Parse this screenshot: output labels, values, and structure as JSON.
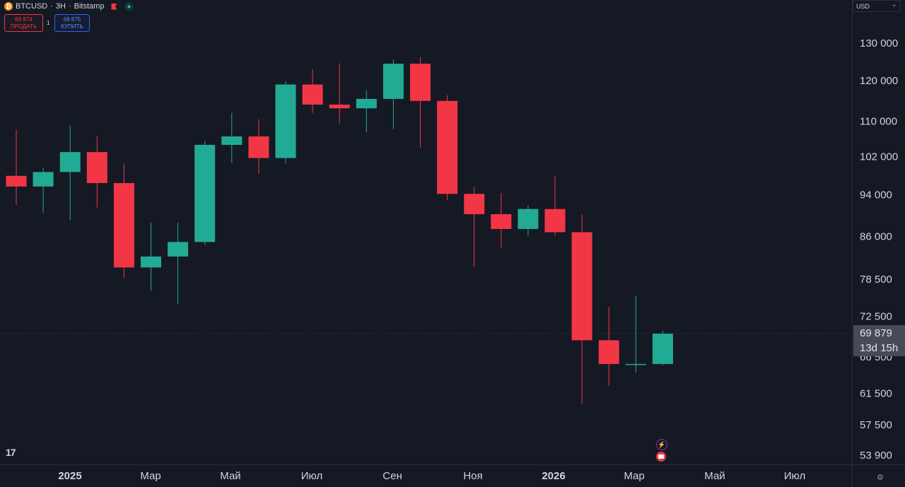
{
  "header": {
    "symbol": "BTCUSD",
    "sep1": "·",
    "interval": "3Н",
    "sep2": "·",
    "exchange": "Bitstamp"
  },
  "trade": {
    "sell_price": "69 874",
    "sell_label": "ПРОДАТЬ",
    "quantity": "1",
    "buy_price": "69 875",
    "buy_label": "КУПИТЬ"
  },
  "currency": "USD",
  "last": {
    "price": "69 879",
    "countdown": "13d 15h"
  },
  "icons": {
    "logo": "tradingview-logo-icon",
    "settings": "settings-icon",
    "coin": "bitcoin-icon",
    "flag": "flag-icon",
    "live": "live-dot-icon",
    "event_bolt": "lightning-event-icon",
    "event_flag": "us-flag-event-icon"
  },
  "colors": {
    "up": "#22ab94",
    "down": "#f23645",
    "background": "#151924",
    "grid": "#2a2e39"
  },
  "chart_data": {
    "type": "candlestick",
    "scale": "log",
    "y_ticks": [
      130000,
      120000,
      110000,
      102000,
      94000,
      86000,
      78500,
      72500,
      66500,
      61500,
      57500,
      53900
    ],
    "y_tick_labels": [
      "130 000",
      "120 000",
      "110 000",
      "102 000",
      "94 000",
      "86 000",
      "78 500",
      "72 500",
      "66 500",
      "61 500",
      "57 500",
      "53 900"
    ],
    "x_labels": [
      "2025",
      "Мар",
      "Май",
      "Июл",
      "Сен",
      "Ноя",
      "2026",
      "Мар",
      "Май",
      "Июл"
    ],
    "x_label_bold": [
      true,
      false,
      false,
      false,
      false,
      false,
      true,
      false,
      false,
      false
    ],
    "candles": [
      {
        "o": 97900,
        "h": 108000,
        "l": 92000,
        "c": 95700
      },
      {
        "o": 95700,
        "h": 99600,
        "l": 90500,
        "c": 98700
      },
      {
        "o": 98700,
        "h": 109000,
        "l": 89000,
        "c": 103000
      },
      {
        "o": 103000,
        "h": 106500,
        "l": 91500,
        "c": 96400
      },
      {
        "o": 96400,
        "h": 100500,
        "l": 78700,
        "c": 80500
      },
      {
        "o": 80500,
        "h": 88600,
        "l": 76600,
        "c": 82400
      },
      {
        "o": 82400,
        "h": 88600,
        "l": 74500,
        "c": 85000
      },
      {
        "o": 85000,
        "h": 105500,
        "l": 84500,
        "c": 104600
      },
      {
        "o": 104600,
        "h": 112000,
        "l": 100600,
        "c": 106500
      },
      {
        "o": 106500,
        "h": 110500,
        "l": 98400,
        "c": 101700
      },
      {
        "o": 101700,
        "h": 119800,
        "l": 100500,
        "c": 119000
      },
      {
        "o": 119000,
        "h": 123000,
        "l": 112000,
        "c": 114000
      },
      {
        "o": 114000,
        "h": 124500,
        "l": 109500,
        "c": 113100
      },
      {
        "o": 113100,
        "h": 117600,
        "l": 107400,
        "c": 115400
      },
      {
        "o": 115400,
        "h": 125500,
        "l": 108200,
        "c": 124400
      },
      {
        "o": 124400,
        "h": 126200,
        "l": 104000,
        "c": 114900
      },
      {
        "o": 114900,
        "h": 116300,
        "l": 92900,
        "c": 94200
      },
      {
        "o": 94200,
        "h": 95600,
        "l": 80600,
        "c": 90200
      },
      {
        "o": 90200,
        "h": 94400,
        "l": 84000,
        "c": 87400
      },
      {
        "o": 87400,
        "h": 91900,
        "l": 86100,
        "c": 91200
      },
      {
        "o": 91200,
        "h": 97800,
        "l": 86200,
        "c": 86800
      },
      {
        "o": 86800,
        "h": 90100,
        "l": 60100,
        "c": 68900
      },
      {
        "o": 68900,
        "h": 74000,
        "l": 62500,
        "c": 65500
      },
      {
        "o": 65500,
        "h": 75800,
        "l": 64300,
        "c": 65500
      },
      {
        "o": 65500,
        "h": 70300,
        "l": 65300,
        "c": 69879
      }
    ],
    "last_price": 69879
  }
}
